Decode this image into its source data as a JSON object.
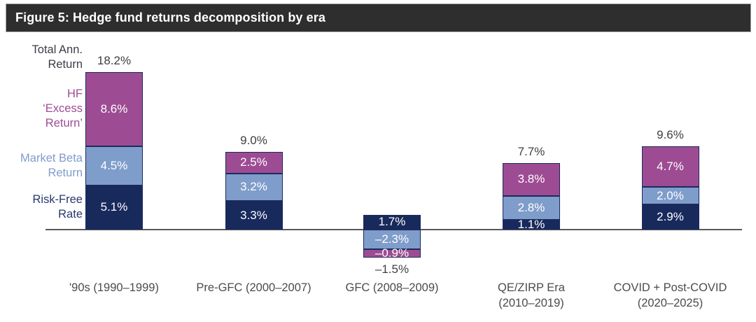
{
  "header": {
    "title": "Figure 5: Hedge fund returns decomposition by era"
  },
  "axis_labels": {
    "total": {
      "lines": [
        "Total Ann.",
        "Return"
      ],
      "color": "#3c3c46"
    },
    "excess": {
      "lines": [
        "HF",
        "‘Excess",
        "Return’"
      ],
      "color": "#9d4c93"
    },
    "beta": {
      "lines": [
        "Market Beta",
        "Return"
      ],
      "color": "#7f9dca"
    },
    "risk_free": {
      "lines": [
        "Risk-Free",
        "Rate"
      ],
      "color": "#27396b"
    }
  },
  "chart_data": {
    "type": "bar",
    "stacked": true,
    "title": "Figure 5: Hedge fund returns decomposition by era",
    "unit": "%",
    "grid": false,
    "baseline": 0,
    "legend_position": "left-axis-text",
    "categories": [
      {
        "lines": [
          "'90s (1990–1999)"
        ]
      },
      {
        "lines": [
          "Pre-GFC (2000–2007)"
        ]
      },
      {
        "lines": [
          "GFC (2008–2009)"
        ]
      },
      {
        "lines": [
          "QE/ZIRP Era",
          "(2010–2019)"
        ]
      },
      {
        "lines": [
          "COVID + Post-COVID",
          "(2020–2025)"
        ]
      }
    ],
    "series": [
      {
        "name": "Risk-Free Rate",
        "color": "#18295c",
        "values": [
          5.1,
          3.3,
          1.7,
          1.1,
          2.9
        ],
        "labels": [
          "5.1%",
          "3.3%",
          "1.7%",
          "1.1%",
          "2.9%"
        ]
      },
      {
        "name": "Market Beta Return",
        "color": "#7f9dca",
        "values": [
          4.5,
          3.2,
          -2.3,
          2.8,
          2.0
        ],
        "labels": [
          "4.5%",
          "3.2%",
          "–2.3%",
          "2.8%",
          "2.0%"
        ]
      },
      {
        "name": "HF 'Excess Return'",
        "color": "#9d4c93",
        "values": [
          8.6,
          2.5,
          -0.9,
          3.8,
          4.7
        ],
        "labels": [
          "8.6%",
          "2.5%",
          "–0.9%",
          "3.8%",
          "4.7%"
        ]
      }
    ],
    "totals": [
      {
        "value": 18.2,
        "label": "18.2%"
      },
      {
        "value": 9.0,
        "label": "9.0%"
      },
      {
        "value": -1.5,
        "label": "–1.5%"
      },
      {
        "value": 7.7,
        "label": "7.7%"
      },
      {
        "value": 9.6,
        "label": "9.6%"
      }
    ]
  }
}
